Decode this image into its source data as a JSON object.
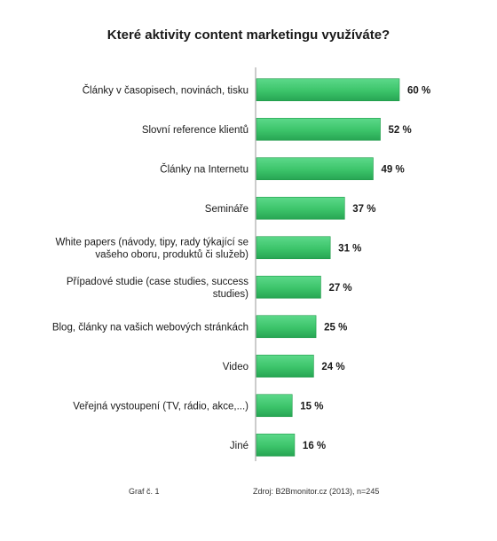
{
  "chart_data": {
    "type": "bar",
    "orientation": "horizontal",
    "title": "Které aktivity content marketingu využíváte?",
    "categories": [
      [
        "Články v časopisech, novinách, tisku"
      ],
      [
        "Slovní reference klientů"
      ],
      [
        "Články na Internetu"
      ],
      [
        "Semináře"
      ],
      [
        "White papers (návody, tipy, rady týkající se",
        "vašeho oboru, produktů či služeb)"
      ],
      [
        "Případové studie (case studies, success",
        "studies)"
      ],
      [
        "Blog, články na vašich webových stránkách"
      ],
      [
        "Video"
      ],
      [
        "Veřejná vystoupení (TV, rádio, akce,...)"
      ],
      [
        "Jiné"
      ]
    ],
    "values": [
      60,
      52,
      49,
      37,
      31,
      27,
      25,
      24,
      15,
      16
    ],
    "value_labels": [
      "60 %",
      "52 %",
      "49 %",
      "37 %",
      "31 %",
      "27 %",
      "25 %",
      "24 %",
      "15 %",
      "16 %"
    ],
    "xlim": [
      0,
      60
    ],
    "bar_color": "#3cc46a",
    "bar_color_dark": "#1f9c4a",
    "grid": false,
    "legend": "none"
  },
  "footer": {
    "left": "Graf č. 1",
    "right": "Zdroj: B2Bmonitor.cz (2013), n=245"
  }
}
